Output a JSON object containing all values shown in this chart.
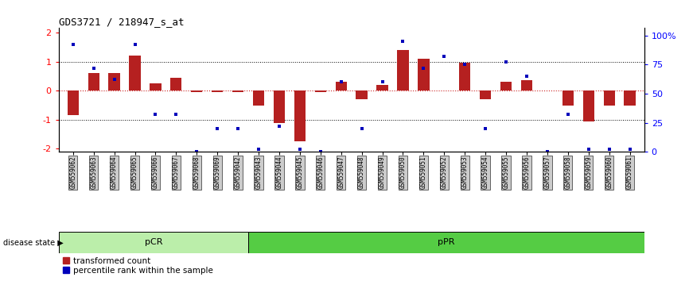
{
  "title": "GDS3721 / 218947_s_at",
  "samples": [
    "GSM559062",
    "GSM559063",
    "GSM559064",
    "GSM559065",
    "GSM559066",
    "GSM559067",
    "GSM559068",
    "GSM559069",
    "GSM559042",
    "GSM559043",
    "GSM559044",
    "GSM559045",
    "GSM559046",
    "GSM559047",
    "GSM559048",
    "GSM559049",
    "GSM559050",
    "GSM559051",
    "GSM559052",
    "GSM559053",
    "GSM559054",
    "GSM559055",
    "GSM559056",
    "GSM559057",
    "GSM559058",
    "GSM559059",
    "GSM559060",
    "GSM559061"
  ],
  "transformed_count": [
    -0.85,
    0.6,
    0.6,
    1.2,
    0.25,
    0.45,
    -0.05,
    -0.05,
    -0.05,
    -0.5,
    -1.1,
    -1.75,
    -0.05,
    0.3,
    -0.3,
    0.2,
    1.4,
    1.1,
    0.0,
    0.95,
    -0.3,
    0.3,
    0.35,
    0.0,
    -0.5,
    -1.05,
    -0.5,
    -0.5
  ],
  "percentile_rank": [
    92,
    72,
    62,
    92,
    32,
    32,
    0,
    20,
    20,
    2,
    22,
    2,
    0,
    60,
    20,
    60,
    95,
    72,
    82,
    75,
    20,
    77,
    65,
    0,
    32,
    2,
    2,
    2
  ],
  "pCR_count": 9,
  "pPR_count": 19,
  "ylim": [
    -2.1,
    2.15
  ],
  "yticks": [
    -2,
    -1,
    0,
    1,
    2
  ],
  "ytick_labels": [
    "-2",
    "-1",
    "0",
    "1",
    "2"
  ],
  "right_yticks": [
    0,
    25,
    50,
    75,
    100
  ],
  "right_ytick_labels": [
    "0",
    "25",
    "50",
    "75",
    "100%"
  ],
  "bar_color": "#b52020",
  "dot_color": "#0000bb",
  "pCR_color": "#bbeeaa",
  "pPR_color": "#55cc44",
  "zero_line_color": "#cc2222",
  "dot_line_color": "#cc2222",
  "background_color": "#ffffff",
  "tick_bg_color": "#cccccc"
}
